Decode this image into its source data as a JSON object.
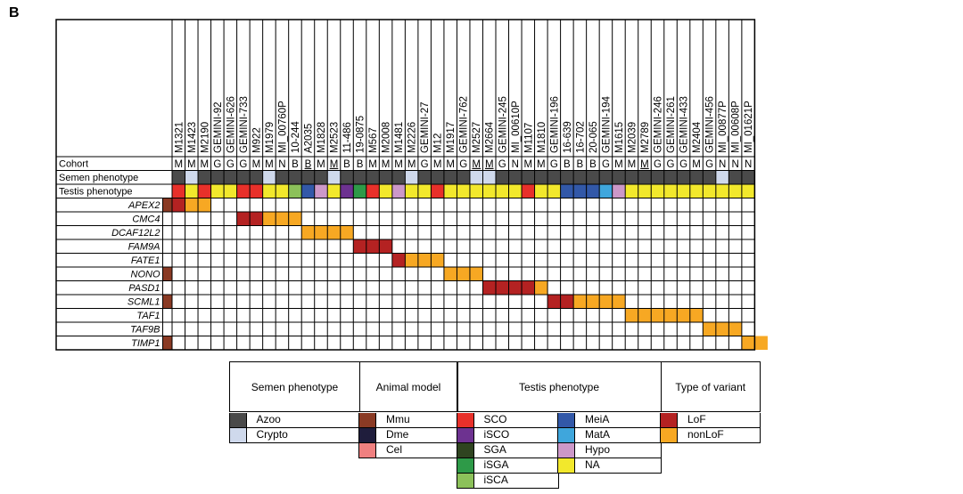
{
  "panel_label": "B",
  "patients": [
    {
      "id": "M1321",
      "cohort": "M",
      "cohort_ul": false,
      "semen": "azoo",
      "testis": "SCO"
    },
    {
      "id": "M1423",
      "cohort": "M",
      "cohort_ul": false,
      "semen": "crypto",
      "testis": "NA"
    },
    {
      "id": "M2190",
      "cohort": "M",
      "cohort_ul": false,
      "semen": "azoo",
      "testis": "SCO"
    },
    {
      "id": "GEMINI-92",
      "cohort": "G",
      "cohort_ul": false,
      "semen": "azoo",
      "testis": "NA"
    },
    {
      "id": "GEMINI-626",
      "cohort": "G",
      "cohort_ul": false,
      "semen": "azoo",
      "testis": "NA"
    },
    {
      "id": "GEMINI-733",
      "cohort": "G",
      "cohort_ul": false,
      "semen": "azoo",
      "testis": "SCO"
    },
    {
      "id": "M922",
      "cohort": "M",
      "cohort_ul": false,
      "semen": "azoo",
      "testis": "SCO"
    },
    {
      "id": "M1979",
      "cohort": "M",
      "cohort_ul": false,
      "semen": "crypto",
      "testis": "NA"
    },
    {
      "id": "MI_00760P",
      "cohort": "N",
      "cohort_ul": false,
      "semen": "azoo",
      "testis": "NA"
    },
    {
      "id": "10-244",
      "cohort": "B",
      "cohort_ul": false,
      "semen": "azoo",
      "testis": "iSCA"
    },
    {
      "id": "A2035",
      "cohort": "B",
      "cohort_ul": true,
      "semen": "azoo",
      "testis": "MeiA"
    },
    {
      "id": "M1828",
      "cohort": "M",
      "cohort_ul": false,
      "semen": "azoo",
      "testis": "Hypo"
    },
    {
      "id": "M2523",
      "cohort": "M",
      "cohort_ul": true,
      "semen": "crypto",
      "testis": "NA"
    },
    {
      "id": "11-486",
      "cohort": "B",
      "cohort_ul": false,
      "semen": "azoo",
      "testis": "iSCO"
    },
    {
      "id": "19-0875",
      "cohort": "B",
      "cohort_ul": false,
      "semen": "azoo",
      "testis": "iSGA"
    },
    {
      "id": "M567",
      "cohort": "M",
      "cohort_ul": false,
      "semen": "azoo",
      "testis": "SCO"
    },
    {
      "id": "M2008",
      "cohort": "M",
      "cohort_ul": false,
      "semen": "azoo",
      "testis": "NA"
    },
    {
      "id": "M1481",
      "cohort": "M",
      "cohort_ul": false,
      "semen": "azoo",
      "testis": "Hypo"
    },
    {
      "id": "M2226",
      "cohort": "M",
      "cohort_ul": false,
      "semen": "crypto",
      "testis": "NA"
    },
    {
      "id": "GEMINI-27",
      "cohort": "G",
      "cohort_ul": false,
      "semen": "azoo",
      "testis": "NA"
    },
    {
      "id": "M12",
      "cohort": "M",
      "cohort_ul": false,
      "semen": "azoo",
      "testis": "SCO"
    },
    {
      "id": "M1917",
      "cohort": "M",
      "cohort_ul": false,
      "semen": "azoo",
      "testis": "NA"
    },
    {
      "id": "GEMINI-762",
      "cohort": "G",
      "cohort_ul": false,
      "semen": "azoo",
      "testis": "NA"
    },
    {
      "id": "M2527",
      "cohort": "M",
      "cohort_ul": true,
      "semen": "crypto",
      "testis": "NA"
    },
    {
      "id": "M2664",
      "cohort": "M",
      "cohort_ul": true,
      "semen": "crypto",
      "testis": "NA"
    },
    {
      "id": "GEMINI-245",
      "cohort": "G",
      "cohort_ul": false,
      "semen": "azoo",
      "testis": "NA"
    },
    {
      "id": "MI_00610P",
      "cohort": "N",
      "cohort_ul": false,
      "semen": "azoo",
      "testis": "NA"
    },
    {
      "id": "M1107",
      "cohort": "M",
      "cohort_ul": false,
      "semen": "azoo",
      "testis": "SCO"
    },
    {
      "id": "M1810",
      "cohort": "M",
      "cohort_ul": false,
      "semen": "azoo",
      "testis": "NA"
    },
    {
      "id": "GEMINI-196",
      "cohort": "G",
      "cohort_ul": false,
      "semen": "azoo",
      "testis": "NA"
    },
    {
      "id": "16-639",
      "cohort": "B",
      "cohort_ul": false,
      "semen": "azoo",
      "testis": "MeiA"
    },
    {
      "id": "16-702",
      "cohort": "B",
      "cohort_ul": false,
      "semen": "azoo",
      "testis": "MeiA"
    },
    {
      "id": "20-065",
      "cohort": "B",
      "cohort_ul": false,
      "semen": "azoo",
      "testis": "MeiA"
    },
    {
      "id": "GEMINI-194",
      "cohort": "G",
      "cohort_ul": false,
      "semen": "azoo",
      "testis": "MatA"
    },
    {
      "id": "M1615",
      "cohort": "M",
      "cohort_ul": false,
      "semen": "azoo",
      "testis": "Hypo"
    },
    {
      "id": "M2039",
      "cohort": "M",
      "cohort_ul": false,
      "semen": "azoo",
      "testis": "NA"
    },
    {
      "id": "M2789",
      "cohort": "M",
      "cohort_ul": true,
      "semen": "azoo",
      "testis": "NA"
    },
    {
      "id": "GEMINI-246",
      "cohort": "G",
      "cohort_ul": false,
      "semen": "azoo",
      "testis": "NA"
    },
    {
      "id": "GEMINI-261",
      "cohort": "G",
      "cohort_ul": false,
      "semen": "azoo",
      "testis": "NA"
    },
    {
      "id": "GEMINI-433",
      "cohort": "G",
      "cohort_ul": false,
      "semen": "azoo",
      "testis": "NA"
    },
    {
      "id": "M2404",
      "cohort": "M",
      "cohort_ul": false,
      "semen": "azoo",
      "testis": "NA"
    },
    {
      "id": "GEMINI-456",
      "cohort": "G",
      "cohort_ul": false,
      "semen": "azoo",
      "testis": "NA"
    },
    {
      "id": "MI_00877P",
      "cohort": "N",
      "cohort_ul": false,
      "semen": "crypto",
      "testis": "NA"
    },
    {
      "id": "MI_00608P",
      "cohort": "N",
      "cohort_ul": false,
      "semen": "azoo",
      "testis": "NA"
    },
    {
      "id": "MI_01621P",
      "cohort": "N",
      "cohort_ul": false,
      "semen": "azoo",
      "testis": "NA"
    }
  ],
  "row_labels": {
    "cohort": "Cohort",
    "semen": "Semen phenotype",
    "testis": "Testis phenotype"
  },
  "genes": [
    {
      "name": "APEX2",
      "animal": [
        "Mmu"
      ],
      "variants": [
        [
          0,
          "LoF"
        ],
        [
          1,
          "nonLoF"
        ],
        [
          2,
          "nonLoF"
        ]
      ]
    },
    {
      "name": "CMC4",
      "animal": [],
      "variants": [
        [
          5,
          "LoF"
        ],
        [
          6,
          "LoF"
        ],
        [
          7,
          "nonLoF"
        ],
        [
          8,
          "nonLoF"
        ],
        [
          9,
          "nonLoF"
        ]
      ]
    },
    {
      "name": "DCAF12L2",
      "animal": [],
      "variants": [
        [
          10,
          "nonLoF"
        ],
        [
          11,
          "nonLoF"
        ],
        [
          12,
          "nonLoF"
        ],
        [
          13,
          "nonLoF"
        ]
      ]
    },
    {
      "name": "FAM9A",
      "animal": [],
      "variants": [
        [
          14,
          "LoF"
        ],
        [
          15,
          "LoF"
        ],
        [
          16,
          "LoF"
        ]
      ]
    },
    {
      "name": "FATE1",
      "animal": [],
      "variants": [
        [
          17,
          "LoF"
        ],
        [
          18,
          "nonLoF"
        ],
        [
          19,
          "nonLoF"
        ],
        [
          20,
          "nonLoF"
        ]
      ]
    },
    {
      "name": "NONO",
      "animal": [
        "Mmu"
      ],
      "variants": [
        [
          21,
          "nonLoF"
        ],
        [
          22,
          "nonLoF"
        ],
        [
          23,
          "nonLoF"
        ]
      ]
    },
    {
      "name": "PASD1",
      "animal": [],
      "variants": [
        [
          24,
          "LoF"
        ],
        [
          25,
          "LoF"
        ],
        [
          26,
          "LoF"
        ],
        [
          27,
          "LoF"
        ],
        [
          28,
          "nonLoF"
        ]
      ]
    },
    {
      "name": "SCML1",
      "animal": [
        "Mmu"
      ],
      "variants": [
        [
          29,
          "LoF"
        ],
        [
          30,
          "LoF"
        ],
        [
          31,
          "nonLoF"
        ],
        [
          32,
          "nonLoF"
        ],
        [
          33,
          "nonLoF"
        ],
        [
          34,
          "nonLoF"
        ]
      ]
    },
    {
      "name": "TAF1",
      "animal": [],
      "variants": [
        [
          35,
          "nonLoF"
        ],
        [
          36,
          "nonLoF"
        ],
        [
          37,
          "nonLoF"
        ],
        [
          38,
          "nonLoF"
        ],
        [
          39,
          "nonLoF"
        ],
        [
          40,
          "nonLoF"
        ]
      ]
    },
    {
      "name": "TAF9B",
      "animal": [],
      "variants": [
        [
          41,
          "nonLoF"
        ],
        [
          42,
          "nonLoF"
        ],
        [
          43,
          "nonLoF"
        ]
      ]
    },
    {
      "name": "TIMP1",
      "animal": [
        "Mmu"
      ],
      "variants": [
        [
          44,
          "nonLoF"
        ],
        [
          45,
          "nonLoF"
        ]
      ]
    }
  ],
  "colors": {
    "azoo": "#4a4a4a",
    "crypto": "#cfd9ec",
    "Mmu": "#8a3a24",
    "Dme": "#1f1d3c",
    "Cel": "#f08080",
    "SCO": "#e8302a",
    "iSCO": "#6d3290",
    "SGA": "#2f4420",
    "iSGA": "#2e9a48",
    "iSCA": "#8cc15a",
    "MeiA": "#3258a8",
    "MatA": "#3fa6dc",
    "Hypo": "#cc98c8",
    "NA": "#f2e82c",
    "LoF": "#b42222",
    "nonLoF": "#f7a823"
  },
  "legend": {
    "semen": {
      "title": "Semen phenotype",
      "items": [
        {
          "key": "azoo",
          "label": "Azoo"
        },
        {
          "key": "crypto",
          "label": "Crypto"
        }
      ]
    },
    "animal": {
      "title": "Animal model",
      "items": [
        {
          "key": "Mmu",
          "label": "Mmu"
        },
        {
          "key": "Dme",
          "label": "Dme"
        },
        {
          "key": "Cel",
          "label": "Cel"
        }
      ]
    },
    "testis": {
      "title": "Testis phenotype",
      "items_left": [
        {
          "key": "SCO",
          "label": "SCO"
        },
        {
          "key": "iSCO",
          "label": "iSCO"
        },
        {
          "key": "SGA",
          "label": "SGA"
        },
        {
          "key": "iSGA",
          "label": "iSGA"
        },
        {
          "key": "iSCA",
          "label": "iSCA"
        }
      ],
      "items_right": [
        {
          "key": "MeiA",
          "label": "MeiA"
        },
        {
          "key": "MatA",
          "label": "MatA"
        },
        {
          "key": "Hypo",
          "label": "Hypo"
        },
        {
          "key": "NA",
          "label": "NA"
        }
      ]
    },
    "variant": {
      "title": "Type of variant",
      "items": [
        {
          "key": "LoF",
          "label": "LoF"
        },
        {
          "key": "nonLoF",
          "label": "nonLoF"
        }
      ]
    }
  }
}
